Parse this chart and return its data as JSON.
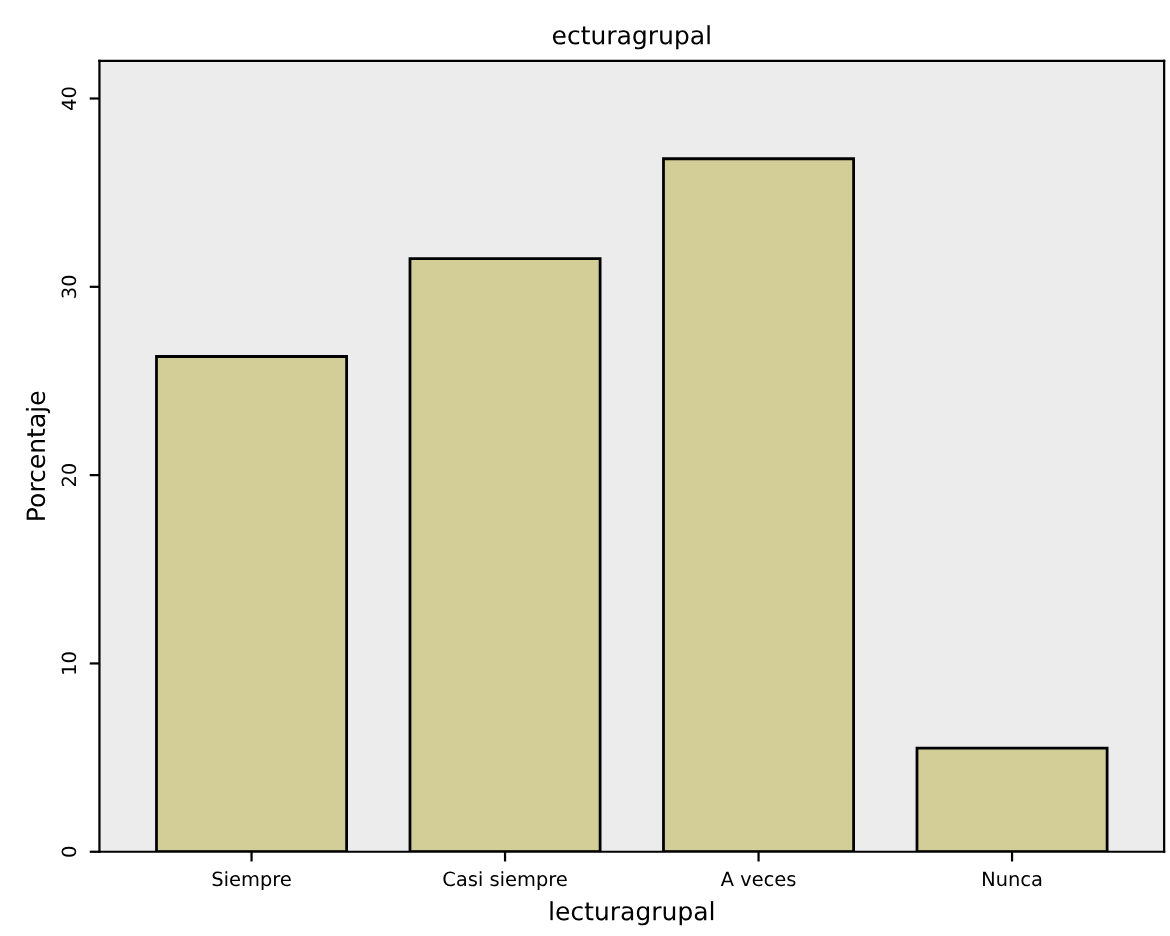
{
  "chart_data": {
    "type": "bar",
    "title": "ecturagrupal",
    "xlabel": "lecturagrupal",
    "ylabel": "Porcentaje",
    "categories": [
      "Siempre",
      "Casi siempre",
      "A veces",
      "Nunca"
    ],
    "values": [
      26.3,
      31.5,
      36.8,
      5.5
    ],
    "color": "#d3ce97",
    "ylim": [
      0,
      42
    ],
    "yticks": [
      0,
      10,
      20,
      30,
      40
    ],
    "grid": false
  }
}
